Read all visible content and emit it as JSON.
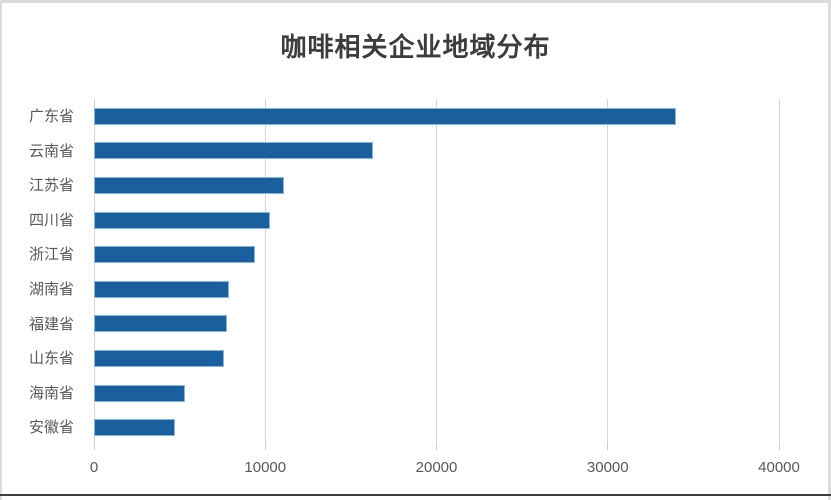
{
  "window": {
    "frame_border_color": "#DBDBDB",
    "bottom_edge_color": "#3E3E3E"
  },
  "chart_data": {
    "type": "bar",
    "orientation": "horizontal",
    "title": "咖啡相关企业地域分布",
    "categories": [
      "广东省",
      "云南省",
      "江苏省",
      "四川省",
      "浙江省",
      "湖南省",
      "福建省",
      "山东省",
      "海南省",
      "安徽省"
    ],
    "values": [
      34000,
      16300,
      11100,
      10260,
      9430,
      7870,
      7790,
      7570,
      5340,
      4750
    ],
    "xlabel": "",
    "ylabel": "",
    "xlim": [
      0,
      40000
    ],
    "x_ticks": [
      0,
      10000,
      20000,
      30000,
      40000
    ],
    "grid": "vertical-major",
    "legend": "none",
    "colors": {
      "bar": "#1A609E",
      "bar_border": "#9DC3E6",
      "gridline": "#D6D6D6",
      "tick": "#C9C9C9",
      "axis_label": "#595959",
      "title": "#3C3C3C"
    }
  }
}
